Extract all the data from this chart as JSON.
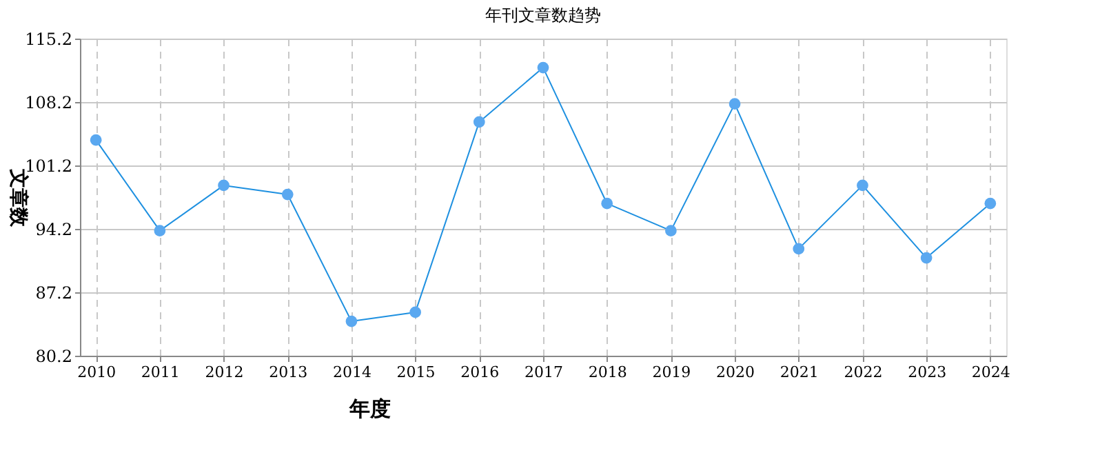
{
  "chart_data": {
    "type": "line",
    "title": "年刊文章数趋势",
    "xlabel": "年度",
    "ylabel": "文章数",
    "categories": [
      "2010",
      "2011",
      "2012",
      "2013",
      "2014",
      "2015",
      "2016",
      "2017",
      "2018",
      "2019",
      "2020",
      "2021",
      "2022",
      "2023",
      "2024"
    ],
    "series": [
      {
        "color": "#1e90e0",
        "values": [
          104,
          94,
          99,
          98,
          84,
          85,
          106,
          112,
          97,
          94,
          108,
          92,
          99,
          91,
          97
        ]
      }
    ],
    "ylim": [
      80.2,
      115.2
    ],
    "yticks": [
      80.2,
      87.2,
      94.2,
      101.2,
      108.2,
      115.2
    ],
    "grid": true,
    "marker": "circle",
    "line_style": "solid"
  }
}
